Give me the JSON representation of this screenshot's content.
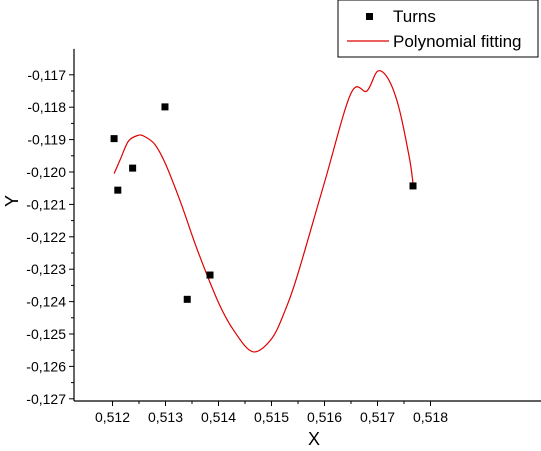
{
  "chart_data": {
    "type": "scatter",
    "title": "",
    "xlabel": "X",
    "ylabel": "Y",
    "xlim": [
      0.5108,
      0.5183
    ],
    "ylim": [
      -0.127,
      -0.1162
    ],
    "x_ticks": [
      0.512,
      0.513,
      0.514,
      0.515,
      0.516,
      0.517,
      0.518
    ],
    "x_tick_labels": [
      "0,512",
      "0,513",
      "0,514",
      "0,515",
      "0,516",
      "0,517",
      "0,518"
    ],
    "y_ticks": [
      -0.127,
      -0.126,
      -0.125,
      -0.124,
      -0.123,
      -0.122,
      -0.121,
      -0.12,
      -0.119,
      -0.118,
      -0.117
    ],
    "y_tick_labels": [
      "-0,127",
      "-0,126",
      "-0,125",
      "-0,124",
      "-0,123",
      "-0,122",
      "-0,121",
      "-0,120",
      "-0,119",
      "-0,118",
      "-0,117"
    ],
    "grid": false,
    "legend_position": "top-right",
    "series": [
      {
        "name": "Turns",
        "kind": "scatter",
        "marker": "square",
        "color": "#000000",
        "points": [
          {
            "x": 0.51203,
            "y": -0.11897
          },
          {
            "x": 0.5121,
            "y": -0.12056
          },
          {
            "x": 0.51238,
            "y": -0.11988
          },
          {
            "x": 0.51299,
            "y": -0.11799
          },
          {
            "x": 0.51341,
            "y": -0.12393
          },
          {
            "x": 0.51384,
            "y": -0.12318
          },
          {
            "x": 0.51767,
            "y": -0.12043
          }
        ]
      },
      {
        "name": "Polynomial fitting",
        "kind": "line",
        "color": "#e00000",
        "points": [
          {
            "x": 0.51203,
            "y": -0.12005
          },
          {
            "x": 0.51215,
            "y": -0.1196
          },
          {
            "x": 0.5123,
            "y": -0.11905
          },
          {
            "x": 0.51248,
            "y": -0.11887
          },
          {
            "x": 0.5126,
            "y": -0.1189
          },
          {
            "x": 0.5128,
            "y": -0.11915
          },
          {
            "x": 0.513,
            "y": -0.11975
          },
          {
            "x": 0.5133,
            "y": -0.121
          },
          {
            "x": 0.5136,
            "y": -0.1224
          },
          {
            "x": 0.514,
            "y": -0.12403
          },
          {
            "x": 0.5143,
            "y": -0.12492
          },
          {
            "x": 0.51465,
            "y": -0.12555
          },
          {
            "x": 0.515,
            "y": -0.12515
          },
          {
            "x": 0.51525,
            "y": -0.1243
          },
          {
            "x": 0.5155,
            "y": -0.12313
          },
          {
            "x": 0.516,
            "y": -0.12032
          },
          {
            "x": 0.5165,
            "y": -0.11757
          },
          {
            "x": 0.5168,
            "y": -0.1175
          },
          {
            "x": 0.517,
            "y": -0.11689
          },
          {
            "x": 0.5172,
            "y": -0.11712
          },
          {
            "x": 0.5174,
            "y": -0.11799
          },
          {
            "x": 0.5176,
            "y": -0.11955
          },
          {
            "x": 0.51767,
            "y": -0.12035
          }
        ]
      }
    ]
  }
}
